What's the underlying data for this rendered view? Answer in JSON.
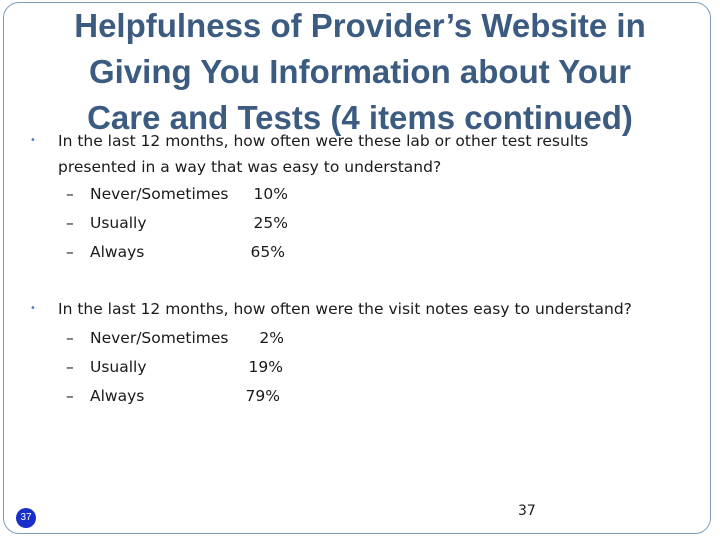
{
  "title": {
    "line1": "Helpfulness of Provider’s Website in",
    "line2": "Giving You Information about Your",
    "line3": "Care and Tests (4 items continued)"
  },
  "questions": [
    {
      "line1": "In the last 12 months, how often were these lab or other test results",
      "line2": "presented in a way that was easy to understand?",
      "responses": [
        {
          "label": "Never/Sometimes",
          "value": "10%"
        },
        {
          "label": "Usually",
          "value": "25%"
        },
        {
          "label": "Always",
          "value": "65%"
        }
      ]
    },
    {
      "line1": "In the last 12 months, how often were the visit notes easy to understand?",
      "responses": [
        {
          "label": "Never/Sometimes",
          "value": "2%"
        },
        {
          "label": "Usually",
          "value": "19%"
        },
        {
          "label": "Always",
          "value": "79%"
        }
      ]
    }
  ],
  "bullet_glyph": "•",
  "dash_glyph": "–",
  "slide_badge": "37",
  "page_number": "37",
  "colors": {
    "title": "#3c5b80",
    "bullet": "#4f81bd",
    "badge": "#1a2fc9",
    "border": "#7f9db9"
  }
}
